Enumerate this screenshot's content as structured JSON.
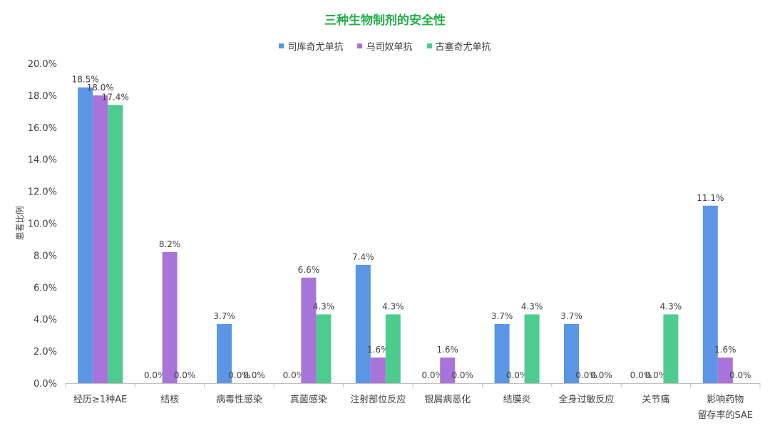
{
  "chart_data": {
    "type": "bar",
    "title": "三种生物制剂的安全性",
    "xlabel": "",
    "ylabel": "患者比例",
    "ylim": [
      0,
      20
    ],
    "yticks": [
      "0.0%",
      "2.0%",
      "4.0%",
      "6.0%",
      "8.0%",
      "10.0%",
      "12.0%",
      "14.0%",
      "16.0%",
      "18.0%",
      "20.0%"
    ],
    "ytick_values": [
      0,
      2,
      4,
      6,
      8,
      10,
      12,
      14,
      16,
      18,
      20
    ],
    "categories": [
      [
        "经历≥1种AE"
      ],
      [
        "结核"
      ],
      [
        "病毒性感染"
      ],
      [
        "真菌感染"
      ],
      [
        "注射部位反应"
      ],
      [
        "银屑病恶化"
      ],
      [
        "结膜炎"
      ],
      [
        "全身过敏反应"
      ],
      [
        "关节痛"
      ],
      [
        "影响药物",
        "留存率的SAE"
      ]
    ],
    "series": [
      {
        "name": "司库奇尤单抗",
        "color": "#5b96e4",
        "values": [
          18.5,
          0.0,
          3.7,
          0.0,
          7.4,
          0.0,
          3.7,
          3.7,
          0.0,
          11.1
        ],
        "labels": [
          "18.5%",
          "0.0%",
          "3.7%",
          "0.0%",
          "7.4%",
          "0.0%",
          "3.7%",
          "3.7%",
          "0.0%",
          "11.1%"
        ]
      },
      {
        "name": "乌司奴单抗",
        "color": "#a874d9",
        "values": [
          18.0,
          8.2,
          0.0,
          6.6,
          1.6,
          1.6,
          0.0,
          0.0,
          0.0,
          1.6
        ],
        "labels": [
          "18.0%",
          "8.2%",
          "0.0%",
          "6.6%",
          "1.6%",
          "1.6%",
          "0.0%",
          "0.0%",
          "0.0%",
          "1.6%"
        ]
      },
      {
        "name": "古塞奇尤单抗",
        "color": "#4ecb8f",
        "values": [
          17.4,
          0.0,
          0.0,
          4.3,
          4.3,
          0.0,
          4.3,
          0.0,
          4.3,
          0.0
        ],
        "labels": [
          "17.4%",
          "0.0%",
          "0.0%",
          "4.3%",
          "4.3%",
          "0.0%",
          "4.3%",
          "0.0%",
          "4.3%",
          "0.0%"
        ]
      }
    ],
    "legend_position": "top-center"
  }
}
